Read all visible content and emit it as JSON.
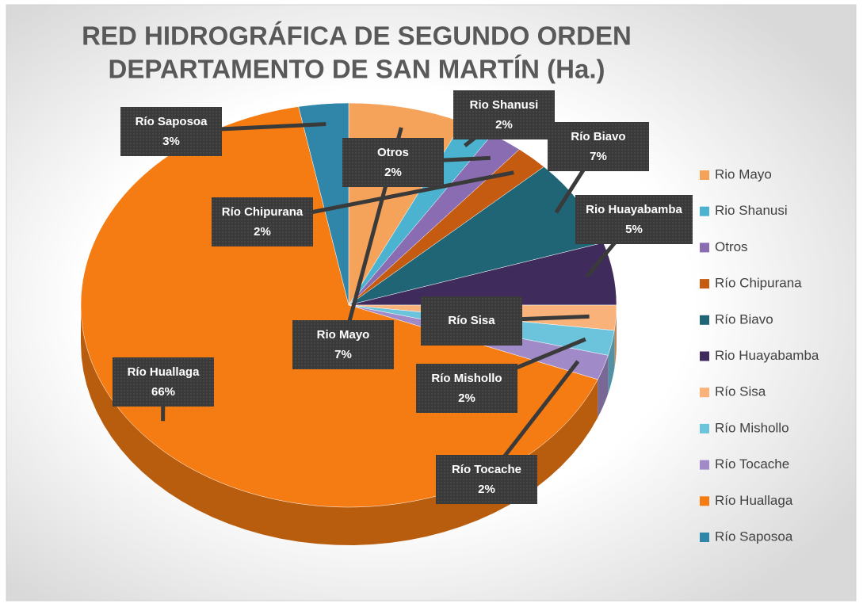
{
  "chart_data": {
    "type": "pie",
    "title": [
      "RED HIDROGRÁFICA DE SEGUNDO ORDEN",
      "DEPARTAMENTO DE SAN MARTÍN  (Ha.)"
    ],
    "categories": [
      "Rio Mayo",
      "Rio Shanusi",
      "Otros",
      "Río Chipurana",
      "Río Biavo",
      "Rio Huayabamba",
      "Río Sisa",
      "Río Mishollo",
      "Río Tocache",
      "Río Huallaga",
      "Río Saposoa"
    ],
    "values": [
      7,
      2,
      2,
      2,
      7,
      5,
      2,
      2,
      2,
      66,
      3
    ],
    "value_labels": [
      "7%",
      "2%",
      "2%",
      "2%",
      "7%",
      "5%",
      null,
      "2%",
      "2%",
      "66%",
      "3%"
    ],
    "colors": [
      "#f5a25a",
      "#4bb3cf",
      "#8a6cb3",
      "#c55a11",
      "#1f6576",
      "#3f2b5c",
      "#f8b27a",
      "#6cc4dc",
      "#a18ac8",
      "#f57c12",
      "#2f86a8"
    ],
    "legend": "right"
  }
}
